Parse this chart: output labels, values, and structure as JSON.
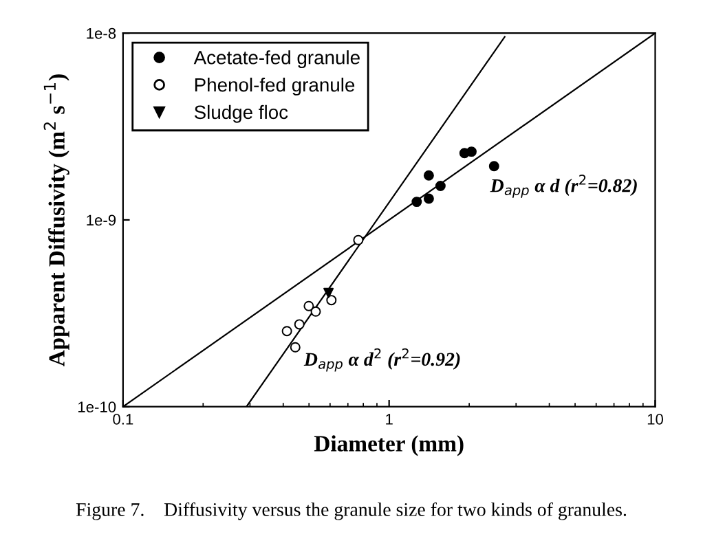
{
  "chart_data": {
    "type": "scatter",
    "xlabel": "Diameter (mm)",
    "ylabel": "Apparent Diffusivity (m$^{2}$ s$^{−1}$)",
    "log": "xy",
    "xlim": [
      0.1,
      10
    ],
    "ylim": [
      1e-10,
      1e-08
    ],
    "xticks": [
      0.1,
      1,
      10
    ],
    "yticks": [
      {
        "value": 1e-10,
        "label": "1e-10"
      },
      {
        "value": 1e-09,
        "label": "1e-9"
      },
      {
        "value": 1e-08,
        "label": "1e-8"
      }
    ],
    "legend": "top left",
    "grid": false,
    "series": [
      {
        "name": "Acetate-fed granule",
        "marker": "circle",
        "color": "#000000",
        "x": [
          1.27,
          1.41,
          1.41,
          1.56,
          1.92,
          2.04,
          2.48
        ],
        "values": [
          1.25e-09,
          1.73e-09,
          1.3e-09,
          1.52e-09,
          2.28e-09,
          2.32e-09,
          1.94e-09
        ]
      },
      {
        "name": "Phenol-fed granule",
        "marker": "circle",
        "color": "#ffffff",
        "x": [
          0.766,
          0.413,
          0.444,
          0.46,
          0.499,
          0.53,
          0.607
        ],
        "values": [
          7.8e-10,
          2.54e-10,
          2.08e-10,
          2.76e-10,
          3.46e-10,
          3.23e-10,
          3.72e-10
        ]
      },
      {
        "name": "Sludge floc",
        "marker": "triangle",
        "color": "#000000",
        "x": [
          0.592
        ],
        "values": [
          4.06e-10
        ]
      },
      {
        "type": "line",
        "color": "#000000",
        "x": [
          0.1,
          10
        ],
        "values": [
          1e-10,
          1e-08
        ]
      },
      {
        "type": "line",
        "color": "#000000",
        "x": [
          0.291,
          2.72
        ],
        "values": [
          1e-10,
          9.56e-09
        ]
      }
    ],
    "annotations": [
      "D$_{app}$ α d (r$^{2}$=0.82)",
      "D$_{app}$ α d$^{2}$ (r$^{2}$=0.92)",
      "Figure 7.    Diffusivity versus the granule size for two kinds of granules."
    ]
  }
}
